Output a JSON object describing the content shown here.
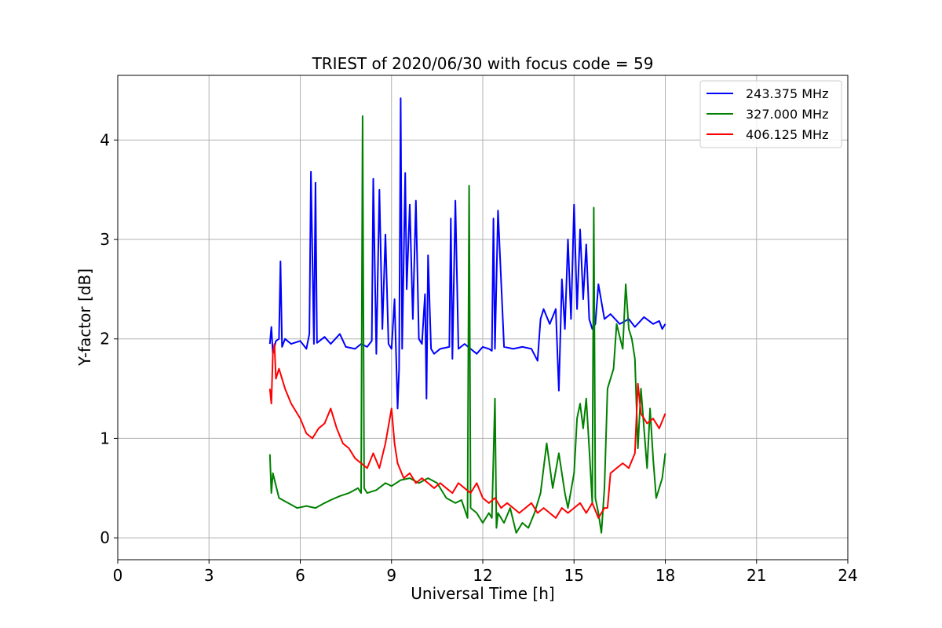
{
  "chart_data": {
    "type": "line",
    "title": "TRIEST of 2020/06/30 with focus code = 59",
    "xlabel": "Universal Time [h]",
    "ylabel": "Y-factor [dB]",
    "xlim": [
      0,
      24
    ],
    "ylim": [
      -0.22,
      4.65
    ],
    "xticks": [
      0,
      3,
      6,
      9,
      12,
      15,
      18,
      21,
      24
    ],
    "yticks": [
      0,
      1,
      2,
      3,
      4
    ],
    "xtick_labels": [
      "0",
      "3",
      "6",
      "9",
      "12",
      "15",
      "18",
      "21",
      "24"
    ],
    "ytick_labels": [
      "0",
      "1",
      "2",
      "3",
      "4"
    ],
    "grid": true,
    "legend_position": "top-right",
    "series": [
      {
        "name": "243.375 MHz",
        "color": "#0000ff",
        "x": [
          5.0,
          5.05,
          5.1,
          5.2,
          5.3,
          5.35,
          5.4,
          5.5,
          5.7,
          6.0,
          6.2,
          6.3,
          6.35,
          6.45,
          6.5,
          6.55,
          6.8,
          7.0,
          7.3,
          7.5,
          7.8,
          8.0,
          8.2,
          8.35,
          8.4,
          8.5,
          8.6,
          8.7,
          8.8,
          8.9,
          9.0,
          9.1,
          9.2,
          9.25,
          9.3,
          9.35,
          9.45,
          9.5,
          9.6,
          9.7,
          9.8,
          9.9,
          10.0,
          10.1,
          10.15,
          10.2,
          10.3,
          10.4,
          10.6,
          10.9,
          10.95,
          11.0,
          11.1,
          11.2,
          11.4,
          11.6,
          11.8,
          12.0,
          12.2,
          12.3,
          12.35,
          12.4,
          12.5,
          12.7,
          13.0,
          13.3,
          13.6,
          13.8,
          13.9,
          14.0,
          14.2,
          14.4,
          14.5,
          14.6,
          14.7,
          14.8,
          14.9,
          15.0,
          15.1,
          15.2,
          15.3,
          15.4,
          15.5,
          15.6,
          15.7,
          15.8,
          16.0,
          16.2,
          16.5,
          16.8,
          17.0,
          17.3,
          17.6,
          17.8,
          17.9,
          18.0
        ],
        "y": [
          1.95,
          2.12,
          1.85,
          1.98,
          2.0,
          2.78,
          1.92,
          2.0,
          1.95,
          1.98,
          1.9,
          2.05,
          3.68,
          1.95,
          3.57,
          1.96,
          2.02,
          1.95,
          2.05,
          1.92,
          1.9,
          1.95,
          1.92,
          1.98,
          3.61,
          1.85,
          3.5,
          2.1,
          3.05,
          1.95,
          1.9,
          2.4,
          1.3,
          1.7,
          4.42,
          1.9,
          3.67,
          2.5,
          3.35,
          2.2,
          3.39,
          2.0,
          1.95,
          2.45,
          1.4,
          2.84,
          1.9,
          1.85,
          1.9,
          1.92,
          3.21,
          1.8,
          3.39,
          1.9,
          1.95,
          1.9,
          1.85,
          1.92,
          1.9,
          1.88,
          3.21,
          1.9,
          3.29,
          1.92,
          1.9,
          1.92,
          1.9,
          1.78,
          2.2,
          2.3,
          2.15,
          2.3,
          1.48,
          2.6,
          2.1,
          3.0,
          2.2,
          3.35,
          2.3,
          3.1,
          2.4,
          2.95,
          2.2,
          2.1,
          2.15,
          2.55,
          2.2,
          2.25,
          2.15,
          2.2,
          2.12,
          2.22,
          2.15,
          2.18,
          2.1,
          2.15
        ]
      },
      {
        "name": "327.000 MHz",
        "color": "#008000",
        "x": [
          5.0,
          5.05,
          5.1,
          5.3,
          5.6,
          5.9,
          6.2,
          6.5,
          6.8,
          7.0,
          7.3,
          7.6,
          7.9,
          8.0,
          8.05,
          8.1,
          8.2,
          8.5,
          8.8,
          9.0,
          9.3,
          9.6,
          9.9,
          10.2,
          10.5,
          10.8,
          11.1,
          11.3,
          11.5,
          11.55,
          11.6,
          11.8,
          12.0,
          12.2,
          12.3,
          12.4,
          12.45,
          12.5,
          12.7,
          12.9,
          13.1,
          13.3,
          13.5,
          13.7,
          13.9,
          14.1,
          14.3,
          14.5,
          14.7,
          14.8,
          15.0,
          15.1,
          15.2,
          15.3,
          15.4,
          15.5,
          15.6,
          15.65,
          15.7,
          15.8,
          15.9,
          16.0,
          16.1,
          16.3,
          16.4,
          16.6,
          16.7,
          16.8,
          16.9,
          17.0,
          17.1,
          17.2,
          17.3,
          17.4,
          17.5,
          17.6,
          17.7,
          17.8,
          17.9,
          18.0
        ],
        "y": [
          0.84,
          0.45,
          0.65,
          0.4,
          0.35,
          0.3,
          0.32,
          0.3,
          0.35,
          0.38,
          0.42,
          0.45,
          0.5,
          0.45,
          4.24,
          0.5,
          0.45,
          0.48,
          0.55,
          0.52,
          0.58,
          0.6,
          0.55,
          0.6,
          0.55,
          0.4,
          0.35,
          0.38,
          0.2,
          3.54,
          0.3,
          0.25,
          0.15,
          0.25,
          0.2,
          1.4,
          0.1,
          0.25,
          0.15,
          0.3,
          0.05,
          0.15,
          0.1,
          0.25,
          0.45,
          0.95,
          0.5,
          0.85,
          0.45,
          0.3,
          0.65,
          1.2,
          1.35,
          1.1,
          1.4,
          0.9,
          0.35,
          3.32,
          0.4,
          0.25,
          0.05,
          0.5,
          1.5,
          1.7,
          2.15,
          1.9,
          2.55,
          2.1,
          2.0,
          1.8,
          0.9,
          1.5,
          1.1,
          0.7,
          1.3,
          0.8,
          0.4,
          0.5,
          0.6,
          0.85
        ]
      },
      {
        "name": "406.125 MHz",
        "color": "#ff0000",
        "x": [
          5.0,
          5.05,
          5.1,
          5.15,
          5.2,
          5.3,
          5.5,
          5.7,
          6.0,
          6.2,
          6.4,
          6.6,
          6.8,
          7.0,
          7.2,
          7.4,
          7.6,
          7.8,
          8.0,
          8.2,
          8.4,
          8.6,
          8.8,
          9.0,
          9.1,
          9.2,
          9.4,
          9.6,
          9.8,
          10.0,
          10.2,
          10.4,
          10.6,
          10.8,
          11.0,
          11.2,
          11.4,
          11.6,
          11.8,
          12.0,
          12.2,
          12.4,
          12.6,
          12.8,
          13.0,
          13.2,
          13.4,
          13.6,
          13.8,
          14.0,
          14.2,
          14.4,
          14.6,
          14.8,
          15.0,
          15.2,
          15.4,
          15.6,
          15.8,
          16.0,
          16.1,
          16.2,
          16.4,
          16.6,
          16.8,
          17.0,
          17.05,
          17.1,
          17.2,
          17.4,
          17.6,
          17.8,
          18.0
        ],
        "y": [
          1.5,
          1.35,
          1.85,
          1.95,
          1.6,
          1.7,
          1.5,
          1.35,
          1.2,
          1.05,
          1.0,
          1.1,
          1.15,
          1.3,
          1.1,
          0.95,
          0.9,
          0.8,
          0.75,
          0.7,
          0.85,
          0.7,
          0.95,
          1.3,
          0.95,
          0.75,
          0.6,
          0.65,
          0.55,
          0.6,
          0.55,
          0.5,
          0.55,
          0.5,
          0.45,
          0.55,
          0.5,
          0.45,
          0.55,
          0.4,
          0.35,
          0.4,
          0.3,
          0.35,
          0.3,
          0.25,
          0.3,
          0.35,
          0.25,
          0.3,
          0.25,
          0.2,
          0.3,
          0.25,
          0.3,
          0.35,
          0.25,
          0.35,
          0.2,
          0.3,
          0.3,
          0.65,
          0.7,
          0.75,
          0.7,
          0.85,
          1.2,
          1.55,
          1.25,
          1.15,
          1.2,
          1.1,
          1.25
        ]
      }
    ]
  }
}
